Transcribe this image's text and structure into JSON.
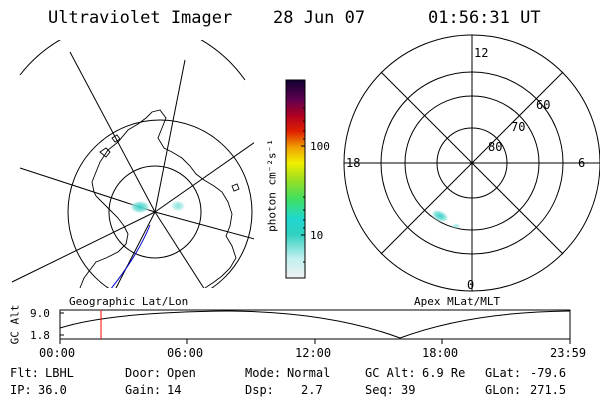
{
  "header": {
    "instrument": "Ultraviolet Imager",
    "date": "28 Jun 07",
    "time": "01:56:31 UT"
  },
  "geo_map": {
    "caption": "Geographic Lat/Lon"
  },
  "colorbar": {
    "label": "photon cm⁻²s⁻¹",
    "ticks": [
      "100",
      "10"
    ],
    "scale": "log"
  },
  "polar_plot": {
    "caption": "Apex MLat/MLT",
    "mlt_labels": {
      "top": "12",
      "bottom": "0",
      "left": "18",
      "right": "6"
    },
    "lat_labels": [
      "60",
      "70",
      "80"
    ]
  },
  "altitude_strip": {
    "ylabel": "GC Alt",
    "yticks": [
      "9.0",
      "1.8"
    ],
    "xticks": [
      "00:00",
      "06:00",
      "12:00",
      "18:00",
      "23:59"
    ],
    "cursor_time": "01:56"
  },
  "info": {
    "row1": [
      {
        "label": "Flt:",
        "value": "LBHL"
      },
      {
        "label": "Door:",
        "value": "Open"
      },
      {
        "label": "Mode:",
        "value": "Normal"
      },
      {
        "label": "GC Alt:",
        "value": "6.9 Re"
      },
      {
        "label": "GLat:",
        "value": "-79.6"
      }
    ],
    "row2": [
      {
        "label": "IP:",
        "value": "36.0"
      },
      {
        "label": "Gain:",
        "value": "14"
      },
      {
        "label": "Dsp:",
        "value": "2.7"
      },
      {
        "label": "Seq:",
        "value": "39"
      },
      {
        "label": "GLon:",
        "value": "271.5"
      }
    ]
  },
  "colors": {
    "foreground": "#000000",
    "cursor": "#ff0000",
    "track": "#0000cc"
  }
}
